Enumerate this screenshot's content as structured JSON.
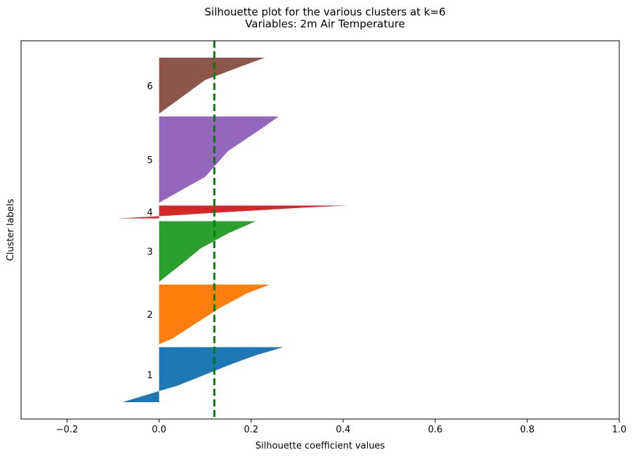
{
  "chart_data": {
    "type": "silhouette",
    "title": "Silhouette plot for the various clusters at k=6",
    "subtitle": "Variables: 2m Air Temperature",
    "xlabel": "Silhouette coefficient values",
    "ylabel": "Cluster labels",
    "xlim": [
      -0.3,
      1.0
    ],
    "xticks": [
      -0.2,
      0.0,
      0.2,
      0.4,
      0.6,
      0.8,
      1.0
    ],
    "xtick_labels": [
      "−0.2",
      "0.0",
      "0.2",
      "0.4",
      "0.6",
      "0.8",
      "1.0"
    ],
    "grid": false,
    "average_silhouette": 0.12,
    "average_line_color": "#008000",
    "clusters": [
      {
        "label": "1",
        "color": "#1f77b4",
        "n_samples": 120,
        "profile_quantile": [
          0.0,
          0.15,
          0.3,
          0.5,
          0.7,
          0.85,
          1.0
        ],
        "profile_value": [
          -0.08,
          -0.02,
          0.04,
          0.1,
          0.16,
          0.21,
          0.27
        ]
      },
      {
        "label": "2",
        "color": "#ff7f0e",
        "n_samples": 130,
        "profile_quantile": [
          0.0,
          0.1,
          0.35,
          0.6,
          0.85,
          1.0
        ],
        "profile_value": [
          0.0,
          0.03,
          0.08,
          0.13,
          0.19,
          0.24
        ]
      },
      {
        "label": "3",
        "color": "#2ca02c",
        "n_samples": 132,
        "profile_quantile": [
          0.0,
          0.3,
          0.55,
          0.8,
          1.0
        ],
        "profile_value": [
          0.0,
          0.05,
          0.09,
          0.15,
          0.21
        ]
      },
      {
        "label": "4",
        "color": "#d62728",
        "n_samples": 28,
        "profile_quantile": [
          0.0,
          0.15,
          0.5,
          0.85,
          1.0
        ],
        "profile_value": [
          -0.09,
          -0.01,
          0.15,
          0.32,
          0.41
        ]
      },
      {
        "label": "5",
        "color": "#9467bd",
        "n_samples": 188,
        "profile_quantile": [
          0.0,
          0.3,
          0.6,
          0.85,
          1.0
        ],
        "profile_value": [
          0.0,
          0.1,
          0.15,
          0.22,
          0.26
        ]
      },
      {
        "label": "6",
        "color": "#8c564b",
        "n_samples": 122,
        "profile_quantile": [
          0.0,
          0.3,
          0.6,
          0.85,
          1.0
        ],
        "profile_value": [
          0.0,
          0.05,
          0.1,
          0.18,
          0.23
        ]
      }
    ]
  }
}
